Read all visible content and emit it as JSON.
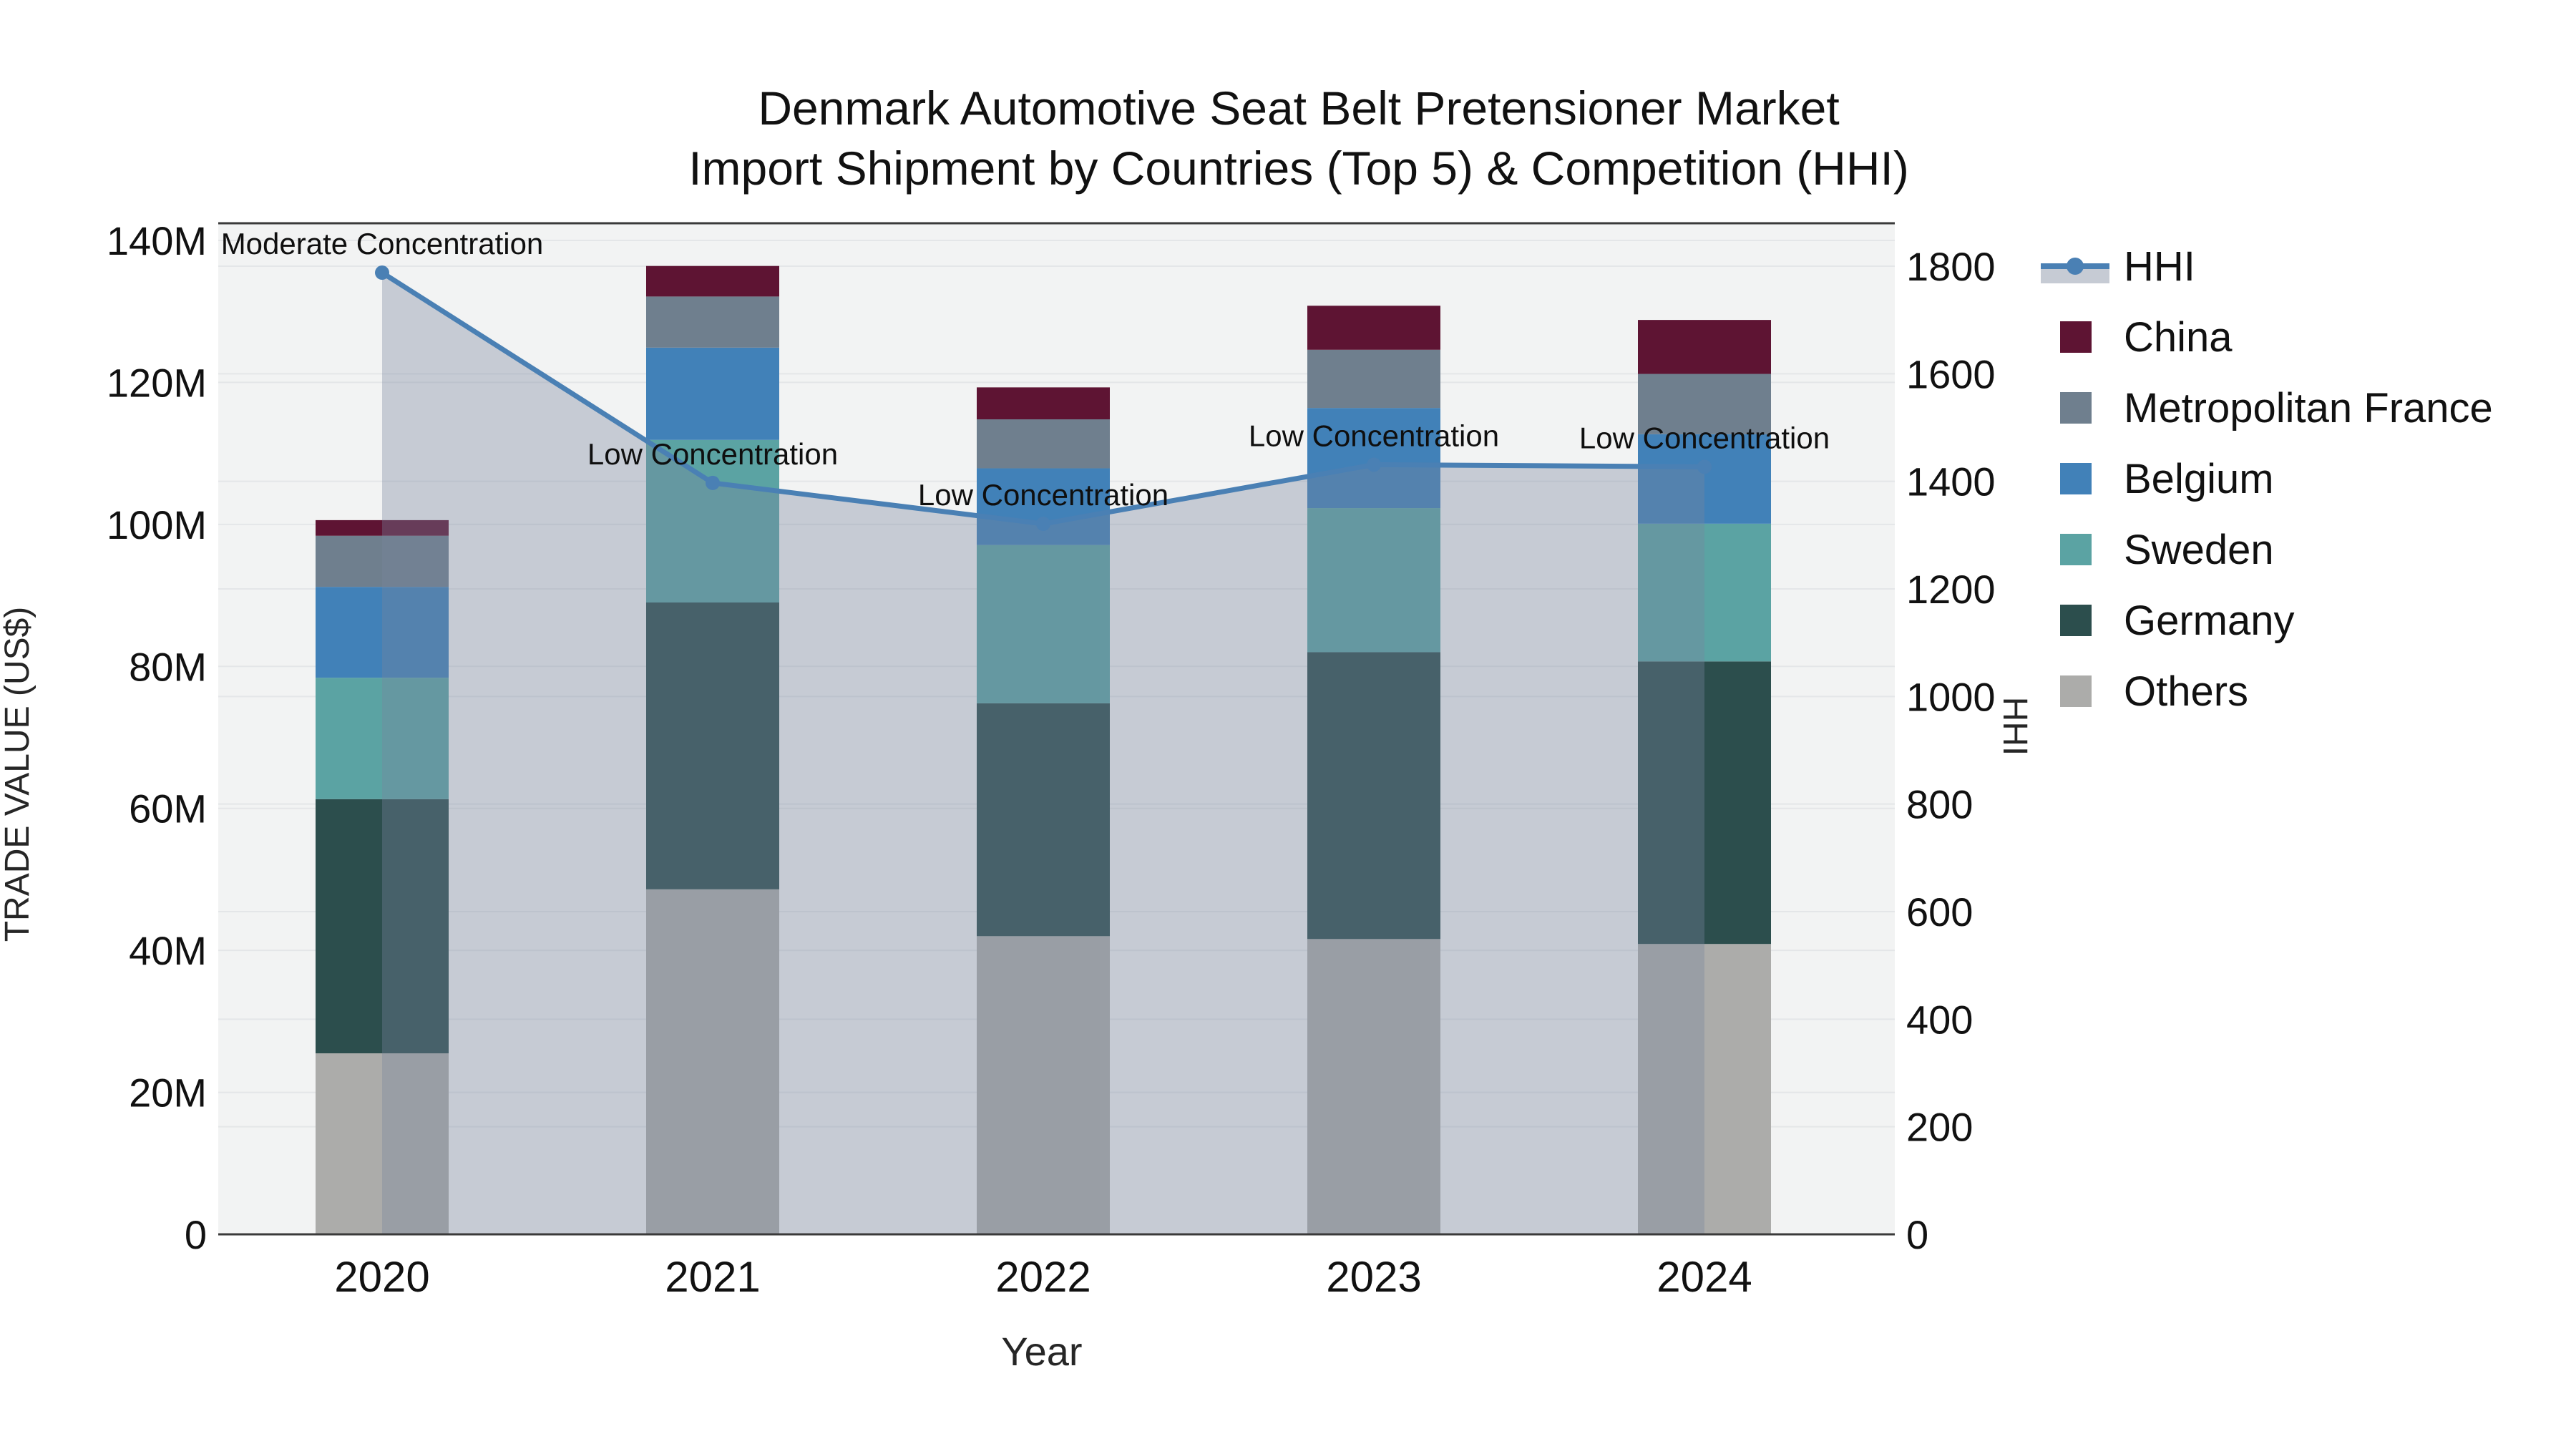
{
  "chart_data": {
    "type": "stacked-bar+line",
    "title": "Denmark Automotive Seat Belt Pretensioner Market",
    "subtitle": "Import Shipment by Countries (Top 5) & Competition (HHI)",
    "categories": [
      "2020",
      "2021",
      "2022",
      "2023",
      "2024"
    ],
    "value_unit": "Million US$",
    "series": [
      {
        "name": "Others",
        "color": "#acacaa",
        "values": [
          25.5,
          48.6,
          42.0,
          41.6,
          40.9
        ]
      },
      {
        "name": "Germany",
        "color": "#2c4e4d",
        "values": [
          35.8,
          40.4,
          32.8,
          40.4,
          39.8
        ]
      },
      {
        "name": "Sweden",
        "color": "#5ba3a3",
        "values": [
          17.1,
          22.9,
          22.3,
          20.3,
          19.4
        ]
      },
      {
        "name": "Belgium",
        "color": "#4181b8",
        "values": [
          12.8,
          13.0,
          10.8,
          14.1,
          12.6
        ]
      },
      {
        "name": "Metropolitan France",
        "color": "#6f7f8e",
        "values": [
          7.2,
          7.2,
          6.9,
          8.2,
          8.5
        ]
      },
      {
        "name": "China",
        "color": "#5e1433",
        "values": [
          2.2,
          4.3,
          4.5,
          6.2,
          7.6
        ]
      }
    ],
    "line_series": {
      "name": "HHI",
      "color": "#4a80b4",
      "fill_color": "rgba(120,134,159,0.36)",
      "legend_fill_color": "#c6cbd4",
      "values": [
        1788,
        1397,
        1321,
        1431,
        1427
      ]
    },
    "annotations": [
      "Moderate Concentration",
      "Low Concentration",
      "Low Concentration",
      "Low Concentration",
      "Low Concentration"
    ],
    "x_axis": {
      "label": "Year"
    },
    "y_left": {
      "label": "TRADE VALUE (US$)",
      "tick_values": [
        0,
        20,
        40,
        60,
        80,
        100,
        120,
        140
      ],
      "tick_labels": [
        "0",
        "20M",
        "40M",
        "60M",
        "80M",
        "100M",
        "120M",
        "140M"
      ],
      "range": [
        0,
        142.4
      ]
    },
    "y_right": {
      "label": "HHI",
      "tick_values": [
        0,
        200,
        400,
        600,
        800,
        1000,
        1200,
        1400,
        1600,
        1800
      ],
      "tick_labels": [
        "0",
        "200",
        "400",
        "600",
        "800",
        "1000",
        "1200",
        "1400",
        "1600",
        "1800"
      ],
      "range": [
        0,
        1880
      ]
    },
    "legend_position": "right",
    "grid": true,
    "plot_bg_color": "#f2f3f3",
    "grid_color": "#e4e6e8",
    "axis_line_color": "#3a3a3a",
    "text_color": "#111111"
  }
}
